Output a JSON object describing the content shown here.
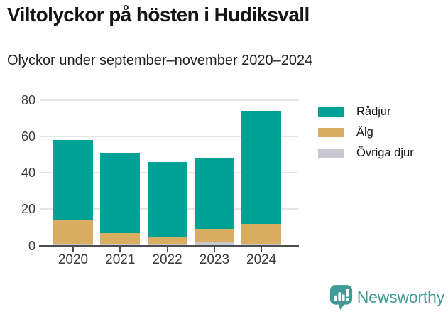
{
  "title": "Viltolyckor på hösten i Hudiksvall",
  "subtitle": "Olyckor under september–november 2020–2024",
  "chart_data": {
    "type": "bar",
    "stacked": true,
    "title": "Viltolyckor på hösten i Hudiksvall",
    "subtitle": "Olyckor under september–november 2020–2024",
    "categories": [
      "2020",
      "2021",
      "2022",
      "2023",
      "2024"
    ],
    "series": [
      {
        "name": "Rådjur",
        "color": "#00a296",
        "values": [
          44,
          44,
          41,
          39,
          62
        ]
      },
      {
        "name": "Älg",
        "color": "#d9ad5f",
        "values": [
          13,
          6,
          4,
          7,
          11
        ]
      },
      {
        "name": "Övriga djur",
        "color": "#c9c7d2",
        "values": [
          1,
          1,
          1,
          2,
          1
        ]
      }
    ],
    "totals": [
      58,
      51,
      46,
      48,
      74
    ],
    "xlabel": "",
    "ylabel": "",
    "ylim": [
      0,
      80
    ],
    "yticks": [
      0,
      20,
      40,
      60,
      80
    ],
    "grid": true,
    "legend_position": "right",
    "legend_items": [
      "Rådjur",
      "Älg",
      "Övriga djur"
    ]
  },
  "footer": {
    "brand": "Newsworthy",
    "brand_color": "#3d9c95",
    "logo_icon": "chart-speech-bubble-icon"
  }
}
